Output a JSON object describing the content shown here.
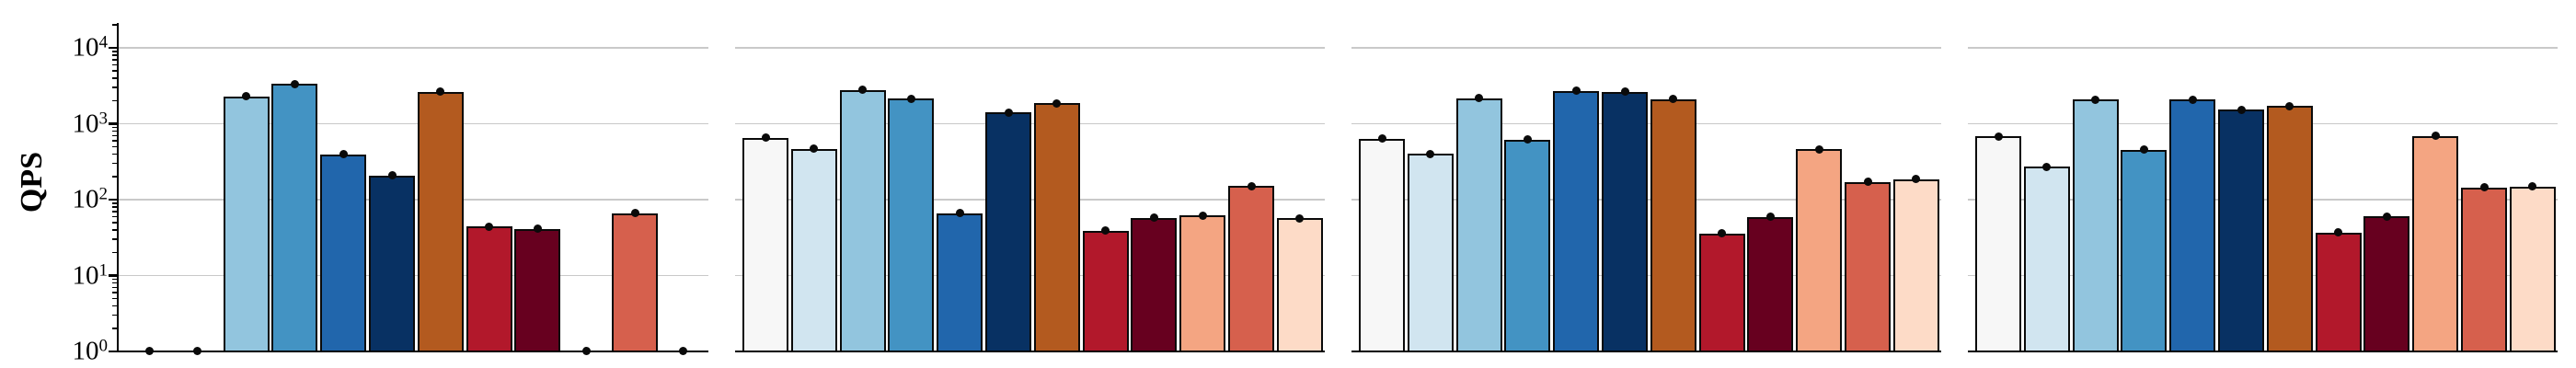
{
  "chart_data": {
    "type": "bar",
    "title": "",
    "ylabel": "QPS",
    "xlabel": "",
    "yscale": "log",
    "ylim": [
      1,
      20000
    ],
    "y_tick_exponents": [
      0,
      1,
      2,
      3,
      4
    ],
    "grid": "horizontal gray gridlines at each decade (10^1 to 10^4)",
    "legend": "none",
    "marker": "black dot centered on the top edge of every bar; bars with value 1 appear as a dot on the baseline",
    "num_panels": 4,
    "bars_per_panel": 12,
    "bar_colors": [
      "#f7f7f7",
      "#d1e5f0",
      "#92c5de",
      "#4393c3",
      "#2166ac",
      "#083163",
      "#b35a1f",
      "#b2182b",
      "#67001f",
      "#f4a582",
      "#d6604d",
      "#fddbc7"
    ],
    "panels": [
      {
        "values": [
          1,
          1,
          2300,
          3350,
          395,
          208,
          2630,
          44,
          41,
          1,
          66,
          1
        ]
      },
      {
        "values": [
          650,
          470,
          2770,
          2150,
          66,
          1400,
          1850,
          39,
          58,
          62,
          151,
          57
        ]
      },
      {
        "values": [
          635,
          400,
          2170,
          620,
          2710,
          2620,
          2110,
          36,
          59,
          460,
          171,
          185
        ]
      },
      {
        "values": [
          680,
          270,
          2080,
          455,
          2080,
          1540,
          1720,
          37,
          60,
          690,
          144,
          149
        ]
      }
    ],
    "axis_colors": {
      "grid": "#c9c9c9",
      "spine": "#000000",
      "bar_edge": "#0a0a0a",
      "background": "#ffffff"
    }
  }
}
